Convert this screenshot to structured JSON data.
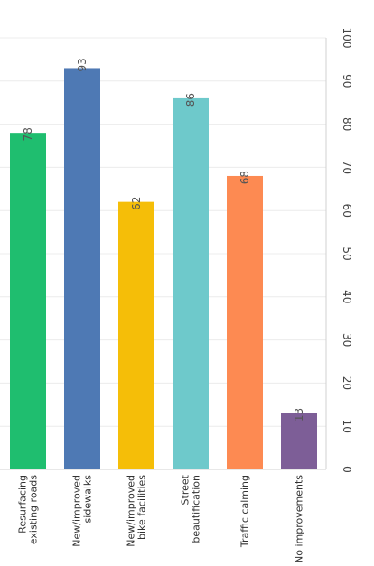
{
  "chart_data": {
    "type": "bar",
    "orientation": "rotated-90-clockwise",
    "categories": [
      [
        "Resurfacing",
        "existing roads"
      ],
      [
        "New/improved",
        "sidewalks"
      ],
      [
        "New/improved",
        "bike facilities"
      ],
      [
        "Street",
        "beautification"
      ],
      [
        "Traffic calming"
      ],
      [
        "No improvements"
      ]
    ],
    "values": [
      78,
      93,
      62,
      86,
      68,
      13
    ],
    "value_labels": [
      "78",
      "93",
      "62",
      "86",
      "68",
      "13"
    ],
    "colors": [
      "#1fbe6f",
      "#4e79b4",
      "#f5be08",
      "#6ec9cb",
      "#fd8a52",
      "#7d5e97"
    ],
    "ylim": [
      0,
      100
    ],
    "ticks": [
      0,
      10,
      20,
      30,
      40,
      50,
      60,
      70,
      80,
      90,
      100
    ],
    "tick_labels": [
      "0",
      "10",
      "20",
      "30",
      "40",
      "50",
      "60",
      "70",
      "80",
      "90",
      "100"
    ],
    "grid": true,
    "legend": "none",
    "title": "",
    "xlabel": "",
    "ylabel": ""
  }
}
